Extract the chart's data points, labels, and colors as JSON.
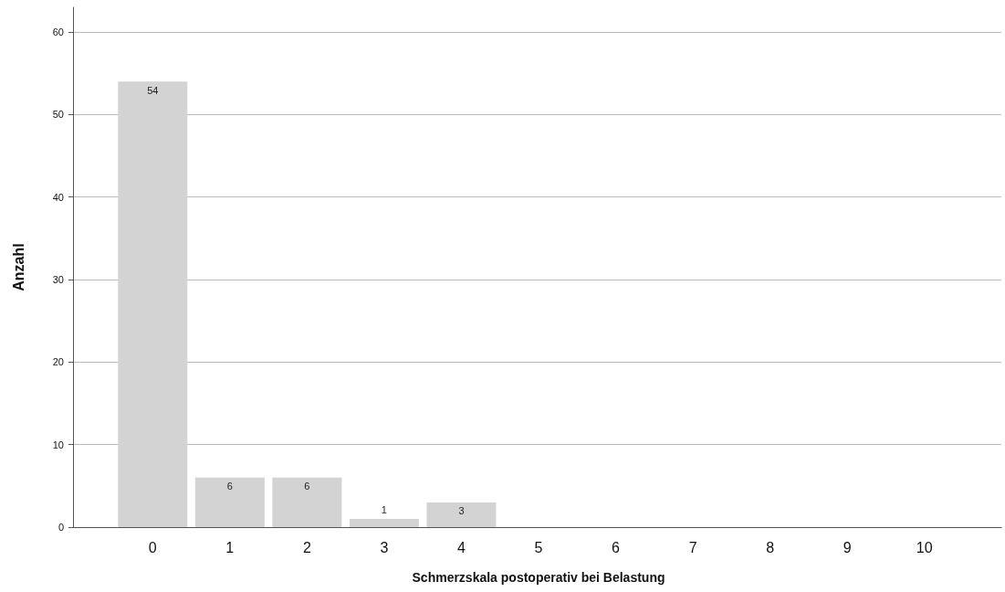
{
  "chart_data": {
    "type": "bar",
    "xlabel": "Schmerzskala postoperativ bei Belastung",
    "ylabel": "Anzahl",
    "categories": [
      "0",
      "1",
      "2",
      "3",
      "4",
      "5",
      "6",
      "7",
      "8",
      "9",
      "10"
    ],
    "values": [
      54,
      6,
      6,
      1,
      3,
      0,
      0,
      0,
      0,
      0,
      0
    ],
    "value_labels": [
      "54",
      "6",
      "6",
      "1",
      "3",
      null,
      null,
      null,
      null,
      null,
      null
    ],
    "color": "#d3d3d3",
    "ylim": [
      0,
      63
    ],
    "yticks": [
      0,
      10,
      20,
      30,
      40,
      50,
      60
    ],
    "grid": "y"
  }
}
